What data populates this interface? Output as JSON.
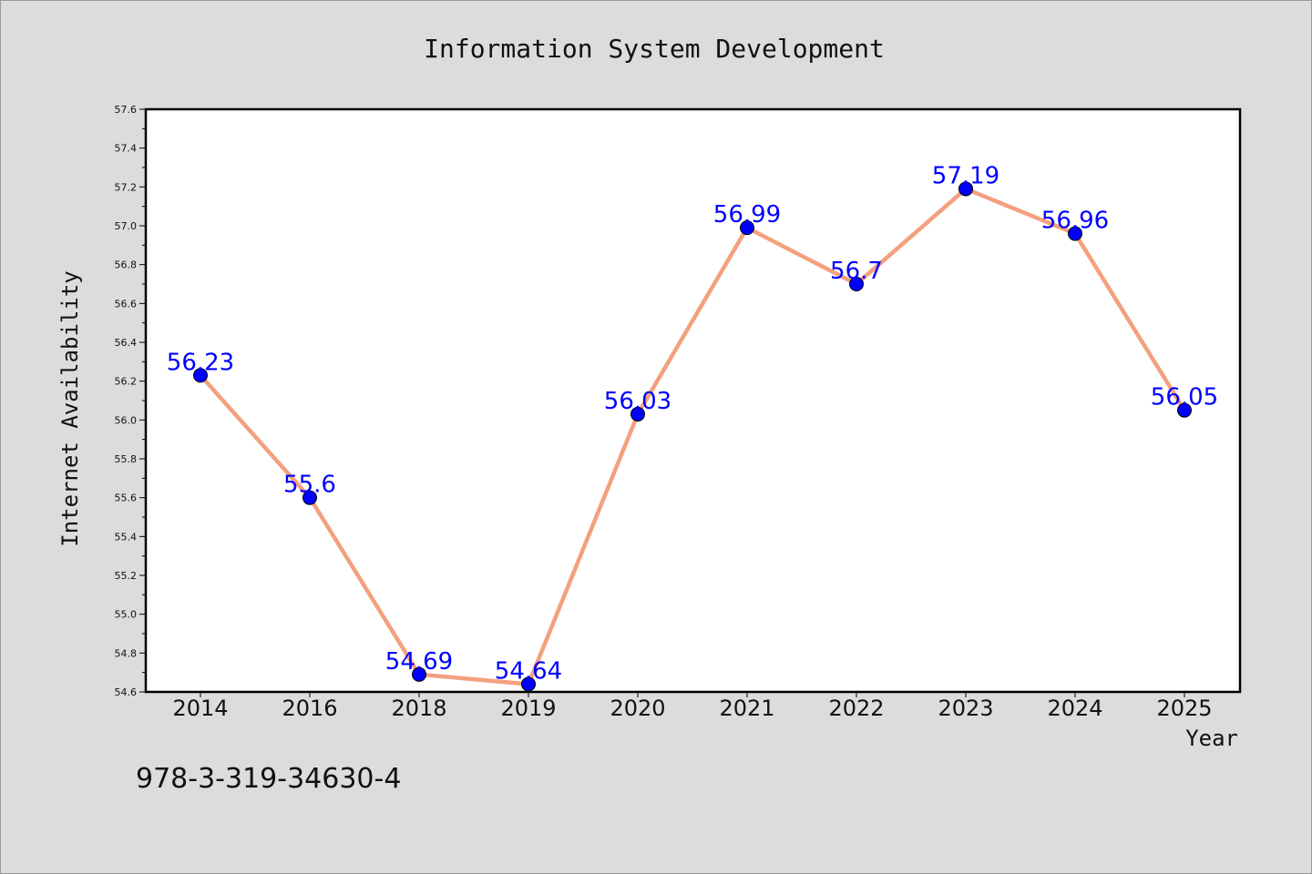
{
  "chart_data": {
    "type": "line",
    "title": "Information System Development",
    "xlabel": "Year",
    "ylabel": "Internet Availability",
    "categories": [
      "2014",
      "2016",
      "2018",
      "2019",
      "2020",
      "2021",
      "2022",
      "2023",
      "2024",
      "2025"
    ],
    "values": [
      56.23,
      55.6,
      54.69,
      54.64,
      56.03,
      56.99,
      56.7,
      57.19,
      56.96,
      56.05
    ],
    "data_labels": [
      "56.23",
      "55.6",
      "54.69",
      "54.64",
      "56.03",
      "56.99",
      "56.7",
      "57.19",
      "56.96",
      "56.05"
    ],
    "ylim": [
      54.6,
      57.6
    ],
    "yticks": [
      "54.6",
      "54.8",
      "55.0",
      "55.2",
      "55.4",
      "55.6",
      "55.8",
      "56.0",
      "56.2",
      "56.4",
      "56.6",
      "56.8",
      "57.0",
      "57.2",
      "57.4",
      "57.6"
    ],
    "line_color": "#f4a07e",
    "marker_color": "#0000ff",
    "label_color": "#0000ff",
    "grid": false,
    "legend": "none"
  },
  "footer": {
    "isbn": "978-3-319-34630-4"
  }
}
